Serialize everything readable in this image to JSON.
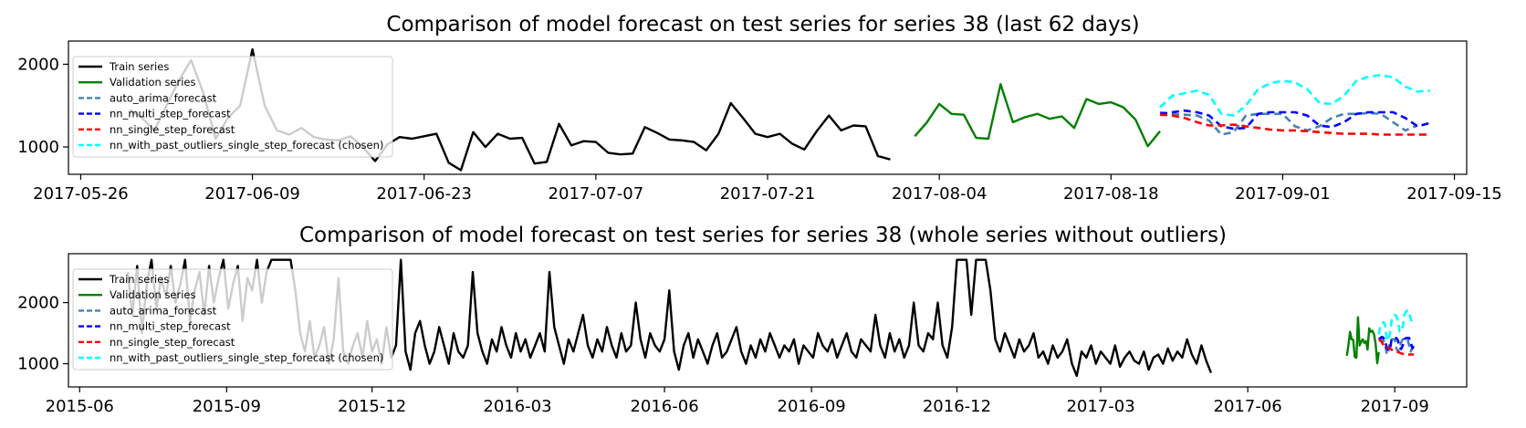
{
  "colors": {
    "train": "#000000",
    "validation": "#008000",
    "auto_arima": "#4682b4",
    "nn_multi": "#0000ff",
    "nn_single": "#ff0000",
    "nn_outliers": "#00ffff"
  },
  "chart_data": [
    {
      "type": "line",
      "title": "Comparison of model forecast on test series for series 38 (last 62 days)",
      "xlabel": "",
      "ylabel": "",
      "x_axis": "date",
      "xlim": [
        "2017-05-25",
        "2017-09-16"
      ],
      "ylim": [
        670,
        2280
      ],
      "xticks": [
        "2017-05-26",
        "2017-06-09",
        "2017-06-23",
        "2017-07-07",
        "2017-07-21",
        "2017-08-04",
        "2017-08-18",
        "2017-09-01",
        "2017-09-15"
      ],
      "yticks": [
        1000,
        2000
      ],
      "grid": false,
      "legend": "upper left",
      "legend_entries": [
        {
          "key": "train",
          "label": "Train series",
          "dash": false
        },
        {
          "key": "validation",
          "label": "Validation series",
          "dash": false
        },
        {
          "key": "auto_arima",
          "label": "auto_arima_forecast",
          "dash": true
        },
        {
          "key": "nn_multi",
          "label": "nn_multi_step_forecast",
          "dash": true
        },
        {
          "key": "nn_single",
          "label": "nn_single_step_forecast",
          "dash": true
        },
        {
          "key": "nn_outliers",
          "label": "nn_with_past_outliers_single_step_forecast (chosen)",
          "dash": true
        }
      ],
      "series": [
        {
          "key": "train",
          "name": "Train series",
          "start": "2017-05-30",
          "values": [
            1450,
            1350,
            1200,
            1500,
            1800,
            2050,
            1650,
            1100,
            1350,
            1500,
            2180,
            1500,
            1200,
            1150,
            1230,
            1120,
            1090,
            1080,
            1130,
            1000,
            830,
            1030,
            1120,
            1100,
            1130,
            1160,
            810,
            720,
            1180,
            1000,
            1160,
            1100,
            1110,
            800,
            820,
            1280,
            1020,
            1070,
            1060,
            930,
            910,
            920,
            1240,
            1170,
            1090,
            1080,
            1060,
            960,
            1160,
            1530,
            1350,
            1160,
            1120,
            1160,
            1040,
            970,
            1190,
            1380,
            1200,
            1260,
            1250,
            890,
            850
          ]
        },
        {
          "key": "validation",
          "name": "Validation series",
          "start": "2017-08-02",
          "values": [
            1130,
            1300,
            1520,
            1400,
            1390,
            1110,
            1100,
            1760,
            1300,
            1360,
            1400,
            1340,
            1370,
            1230,
            1580,
            1520,
            1540,
            1480,
            1330,
            1010,
            1190
          ]
        },
        {
          "key": "auto_arima",
          "name": "auto_arima_forecast",
          "start": "2017-08-22",
          "dash": true,
          "values": [
            1420,
            1400,
            1390,
            1380,
            1320,
            1150,
            1180,
            1380,
            1400,
            1400,
            1400,
            1250,
            1200,
            1250,
            1350,
            1400,
            1400,
            1410,
            1400,
            1300,
            1200,
            1260
          ]
        },
        {
          "key": "nn_multi",
          "name": "nn_multi_step_forecast",
          "start": "2017-08-22",
          "dash": true,
          "values": [
            1400,
            1420,
            1440,
            1420,
            1380,
            1250,
            1220,
            1230,
            1400,
            1420,
            1420,
            1420,
            1380,
            1260,
            1240,
            1300,
            1400,
            1420,
            1420,
            1420,
            1350,
            1250,
            1290
          ]
        },
        {
          "key": "nn_single",
          "name": "nn_single_step_forecast",
          "start": "2017-08-22",
          "dash": true,
          "values": [
            1390,
            1380,
            1350,
            1300,
            1260,
            1260,
            1270,
            1250,
            1230,
            1210,
            1200,
            1200,
            1190,
            1180,
            1170,
            1160,
            1160,
            1160,
            1150,
            1150,
            1150,
            1150,
            1150
          ]
        },
        {
          "key": "nn_outliers",
          "name": "nn_with_past_outliers_single_step_forecast (chosen)",
          "start": "2017-08-22",
          "dash": true,
          "values": [
            1480,
            1620,
            1650,
            1680,
            1630,
            1400,
            1380,
            1500,
            1700,
            1770,
            1800,
            1780,
            1700,
            1530,
            1520,
            1620,
            1800,
            1850,
            1870,
            1840,
            1730,
            1670,
            1680
          ]
        }
      ]
    },
    {
      "type": "line",
      "title": "Comparison of model forecast on test series for series 38 (whole series without outliers)",
      "xlabel": "",
      "ylabel": "",
      "x_axis": "date",
      "xlim": [
        "2015-05-25",
        "2017-10-16"
      ],
      "ylim": [
        620,
        2800
      ],
      "xticks": [
        "2015-06",
        "2015-09",
        "2015-12",
        "2016-03",
        "2016-06",
        "2016-09",
        "2016-12",
        "2017-03",
        "2017-06",
        "2017-09"
      ],
      "yticks": [
        1000,
        2000
      ],
      "grid": false,
      "legend": "upper left",
      "legend_entries": [
        {
          "key": "train",
          "label": "Train series",
          "dash": false
        },
        {
          "key": "validation",
          "label": "Validation series",
          "dash": false
        },
        {
          "key": "auto_arima",
          "label": "auto_arima_forecast",
          "dash": true
        },
        {
          "key": "nn_multi",
          "label": "nn_multi_step_forecast",
          "dash": true
        },
        {
          "key": "nn_single",
          "label": "nn_single_step_forecast",
          "dash": true
        },
        {
          "key": "nn_outliers",
          "label": "nn_with_past_outliers_single_step_forecast (chosen)",
          "dash": true
        }
      ],
      "series": [
        {
          "key": "train",
          "name": "Train series",
          "start": "2015-07-01",
          "step_days": 3,
          "values": [
            2500,
            1800,
            2600,
            1500,
            2300,
            2700,
            1900,
            2400,
            2100,
            2600,
            2000,
            2300,
            2700,
            1700,
            2200,
            2500,
            1800,
            2600,
            2000,
            2400,
            2700,
            1900,
            2300,
            2600,
            1700,
            2400,
            2200,
            2700,
            2000,
            2500,
            2700,
            2700,
            2700,
            2700,
            2700,
            2200,
            1500,
            1200,
            1700,
            1100,
            1300,
            1600,
            1000,
            1400,
            2400,
            1200,
            1000,
            1300,
            1500,
            1100,
            1700,
            1200,
            1400,
            1000,
            1600,
            1100,
            1300,
            2700,
            1200,
            900,
            1500,
            1700,
            1300,
            1000,
            1200,
            1600,
            1300,
            1000,
            1500,
            1200,
            1100,
            1300,
            2500,
            1500,
            1200,
            1000,
            1400,
            1200,
            1600,
            1300,
            1100,
            1500,
            1200,
            1400,
            1100,
            1300,
            1500,
            1200,
            2500,
            1600,
            1300,
            1000,
            1400,
            1200,
            1500,
            1800,
            1300,
            1100,
            1400,
            1200,
            1600,
            1300,
            1100,
            1500,
            1200,
            1300,
            2000,
            1400,
            1100,
            1500,
            1300,
            1200,
            1400,
            2200,
            1200,
            900,
            1300,
            1500,
            1100,
            1400,
            1200,
            1000,
            1300,
            1500,
            1100,
            1200,
            1400,
            1600,
            1200,
            1000,
            1300,
            1100,
            1400,
            1200,
            1500,
            1300,
            1100,
            1300,
            1200,
            1400,
            1000,
            1300,
            1200,
            1100,
            1500,
            1300,
            1200,
            1400,
            1100,
            1300,
            1500,
            1200,
            1100,
            1400,
            1300,
            1200,
            1800,
            1300,
            1100,
            1500,
            1200,
            1400,
            1100,
            1300,
            2000,
            1300,
            1200,
            1500,
            1400,
            2000,
            1300,
            1100,
            1600,
            2700,
            2700,
            2700,
            1800,
            2700,
            2700,
            2700,
            2200,
            1400,
            1200,
            1500,
            1300,
            1100,
            1400,
            1200,
            1300,
            1500,
            1100,
            1200,
            1000,
            1300,
            1100,
            1200,
            1400,
            1000,
            800,
            1200,
            1100,
            1300,
            1000,
            1200,
            1100,
            1000,
            1300,
            950,
            1100,
            1200,
            1050,
            1000,
            1200,
            900,
            1100,
            1150,
            1000,
            1250,
            1050,
            1200,
            1100,
            1400,
            1150,
            1000,
            1300,
            1050,
            850
          ]
        },
        {
          "key": "validation",
          "name": "Validation series",
          "start": "2017-08-02",
          "step_days": 1,
          "values": [
            1130,
            1300,
            1520,
            1400,
            1390,
            1110,
            1100,
            1760,
            1300,
            1360,
            1400,
            1340,
            1370,
            1230,
            1580,
            1520,
            1540,
            1480,
            1330,
            1010,
            1190
          ]
        },
        {
          "key": "auto_arima",
          "name": "auto_arima_forecast",
          "start": "2017-08-22",
          "step_days": 1,
          "dash": true,
          "values": [
            1420,
            1400,
            1390,
            1380,
            1320,
            1150,
            1180,
            1380,
            1400,
            1400,
            1400,
            1250,
            1200,
            1250,
            1350,
            1400,
            1400,
            1410,
            1400,
            1300,
            1200,
            1260
          ]
        },
        {
          "key": "nn_multi",
          "name": "nn_multi_step_forecast",
          "start": "2017-08-22",
          "step_days": 1,
          "dash": true,
          "values": [
            1400,
            1420,
            1440,
            1420,
            1380,
            1250,
            1220,
            1230,
            1400,
            1420,
            1420,
            1420,
            1380,
            1260,
            1240,
            1300,
            1400,
            1420,
            1420,
            1420,
            1350,
            1250,
            1290
          ]
        },
        {
          "key": "nn_single",
          "name": "nn_single_step_forecast",
          "start": "2017-08-22",
          "step_days": 1,
          "dash": true,
          "values": [
            1390,
            1380,
            1350,
            1300,
            1260,
            1260,
            1270,
            1250,
            1230,
            1210,
            1200,
            1200,
            1190,
            1180,
            1170,
            1160,
            1160,
            1160,
            1150,
            1150,
            1150,
            1150,
            1150
          ]
        },
        {
          "key": "nn_outliers",
          "name": "nn_with_past_outliers_single_step_forecast (chosen)",
          "start": "2017-08-22",
          "step_days": 1,
          "dash": true,
          "values": [
            1480,
            1620,
            1650,
            1680,
            1630,
            1400,
            1380,
            1500,
            1700,
            1770,
            1800,
            1780,
            1700,
            1530,
            1520,
            1620,
            1800,
            1850,
            1870,
            1840,
            1730,
            1670,
            1680
          ]
        }
      ]
    }
  ]
}
